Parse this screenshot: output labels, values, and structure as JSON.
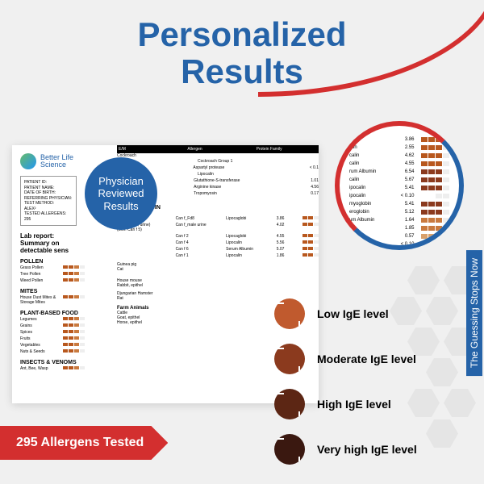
{
  "title_line1": "Personalized",
  "title_line2": "Results",
  "logo_line1": "Better Life",
  "logo_line2": "Science",
  "patient_fields": [
    "PATIENT ID:",
    "PATIENT NAME:",
    "DATE OF BIRTH:",
    "REFERRING PHYSICIAN:",
    "TEST METHOD:",
    "ALEX²",
    "TESTED ALLERGENS:",
    "295"
  ],
  "report_heading": "Lab report: Summary on detectable sens",
  "categories": [
    {
      "name": "POLLEN",
      "items": [
        "Grass Pollen",
        "Tree Pollen",
        "Weed Pollen"
      ]
    },
    {
      "name": "MITES",
      "items": [
        "House Dust Mites & Storage Mites"
      ]
    },
    {
      "name": "PLANT-BASED FOOD",
      "items": [
        "Legumes",
        "Grains",
        "Spices",
        "Fruits",
        "Vegetables",
        "Nuts & Seeds"
      ]
    },
    {
      "name": "INSECTS & VENOMS",
      "items": [
        "Ant, Bee, Wasp"
      ]
    }
  ],
  "table_headers": [
    "E/M",
    "Allergen",
    "Protein Family"
  ],
  "animal_section": "ANIMAL ORIGIN",
  "animal_sub": "Pet",
  "animal_rows": [
    {
      "name": "Dog",
      "code": "Can f_Fd8",
      "protein": "Lipocaglobi",
      "val": "3.86"
    },
    {
      "name": "Horse (step; urine) (Ech. Can f 5)",
      "code": "Can f_male urine",
      "protein": "",
      "val": "4.02"
    },
    {
      "name": "",
      "code": "Can f 2",
      "protein": "Lipocaglobi",
      "val": "4.55"
    },
    {
      "name": "",
      "code": "Can f 4",
      "protein": "Lipocalin",
      "val": "5.56"
    },
    {
      "name": "",
      "code": "Can f 6",
      "protein": "Serum Albumin",
      "val": "5.07"
    },
    {
      "name": "",
      "code": "Can f 1",
      "protein": "Lipocalin",
      "val": "1.86"
    }
  ],
  "farm_section": "Farm Animals",
  "farm_rows": [
    "Cattle",
    "Goat, epithel",
    "Horse, epithel"
  ],
  "guinea": "Guinea pig",
  "cat": "Cat",
  "house_mouse": "House mouse",
  "rabbit": "Rabbit, epithel",
  "hamster": "Djungarian Hamster",
  "rat": "Rat",
  "cockroach_section": "Cockroach",
  "cockroach_rows": [
    {
      "code": "Bla g 1",
      "protein": "Cockroach Group 1",
      "val": ""
    },
    {
      "code": "Bla g 2",
      "protein": "Aspartyl protease",
      "val": "< 0.1"
    },
    {
      "code": "Bla g 4",
      "protein": "Lipocalin",
      "val": ""
    },
    {
      "code": "Bla g 5",
      "protein": "Glutathione-S-transferase",
      "val": "1.01"
    },
    {
      "code": "Bla g 9",
      "protein": "Arginine kinase",
      "val": "4.56"
    },
    {
      "code": "Per a 7",
      "protein": "Tropomyosin",
      "val": "0.17"
    }
  ],
  "german_cockroach": "German Cockroach",
  "american_cockroach": "American Cockroach",
  "magnifier_rows": [
    {
      "label": "",
      "val": "3.86",
      "c": "#b8581e"
    },
    {
      "label": "atin",
      "val": "2.55",
      "c": "#b8581e"
    },
    {
      "label": "calin",
      "val": "4.62",
      "c": "#b8581e"
    },
    {
      "label": "calin",
      "val": "4.55",
      "c": "#b8581e"
    },
    {
      "label": "rum Albumin",
      "val": "6.54",
      "c": "#8b3a1e"
    },
    {
      "label": "calin",
      "val": "5.67",
      "c": "#8b3a1e"
    },
    {
      "label": "ipocalin",
      "val": "5.41",
      "c": "#8b3a1e"
    },
    {
      "label": "ipocalin",
      "val": "< 0.10",
      "c": "#fff"
    },
    {
      "label": "myoglobin",
      "val": "5.41",
      "c": "#8b3a1e"
    },
    {
      "label": "eroglobin",
      "val": "5.12",
      "c": "#8b3a1e"
    },
    {
      "label": "um Albumin",
      "val": "1.64",
      "c": "#c97a3f"
    },
    {
      "label": "",
      "val": "1.85",
      "c": "#c97a3f"
    },
    {
      "label": "",
      "val": "0.57",
      "c": "#d9a06a"
    },
    {
      "label": "",
      "val": "< 0.10",
      "c": "#fff"
    }
  ],
  "physician_l1": "Physician",
  "physician_l2": "Reviewed",
  "physician_l3": "Results",
  "legend_items": [
    {
      "label": "Low IgE level",
      "color": "#c05a2e"
    },
    {
      "label": "Moderate IgE level",
      "color": "#8b3a1e"
    },
    {
      "label": "High IgE level",
      "color": "#5c2614"
    },
    {
      "label": "Very high IgE level",
      "color": "#3a1810"
    }
  ],
  "ribbon_text": "295 Allergens Tested",
  "side_text": "The Guessing Stops Now",
  "bar_colors": {
    "high": "#8b3a1e",
    "med": "#b8581e",
    "low": "#c97a3f",
    "vlow": "#d9a06a"
  }
}
